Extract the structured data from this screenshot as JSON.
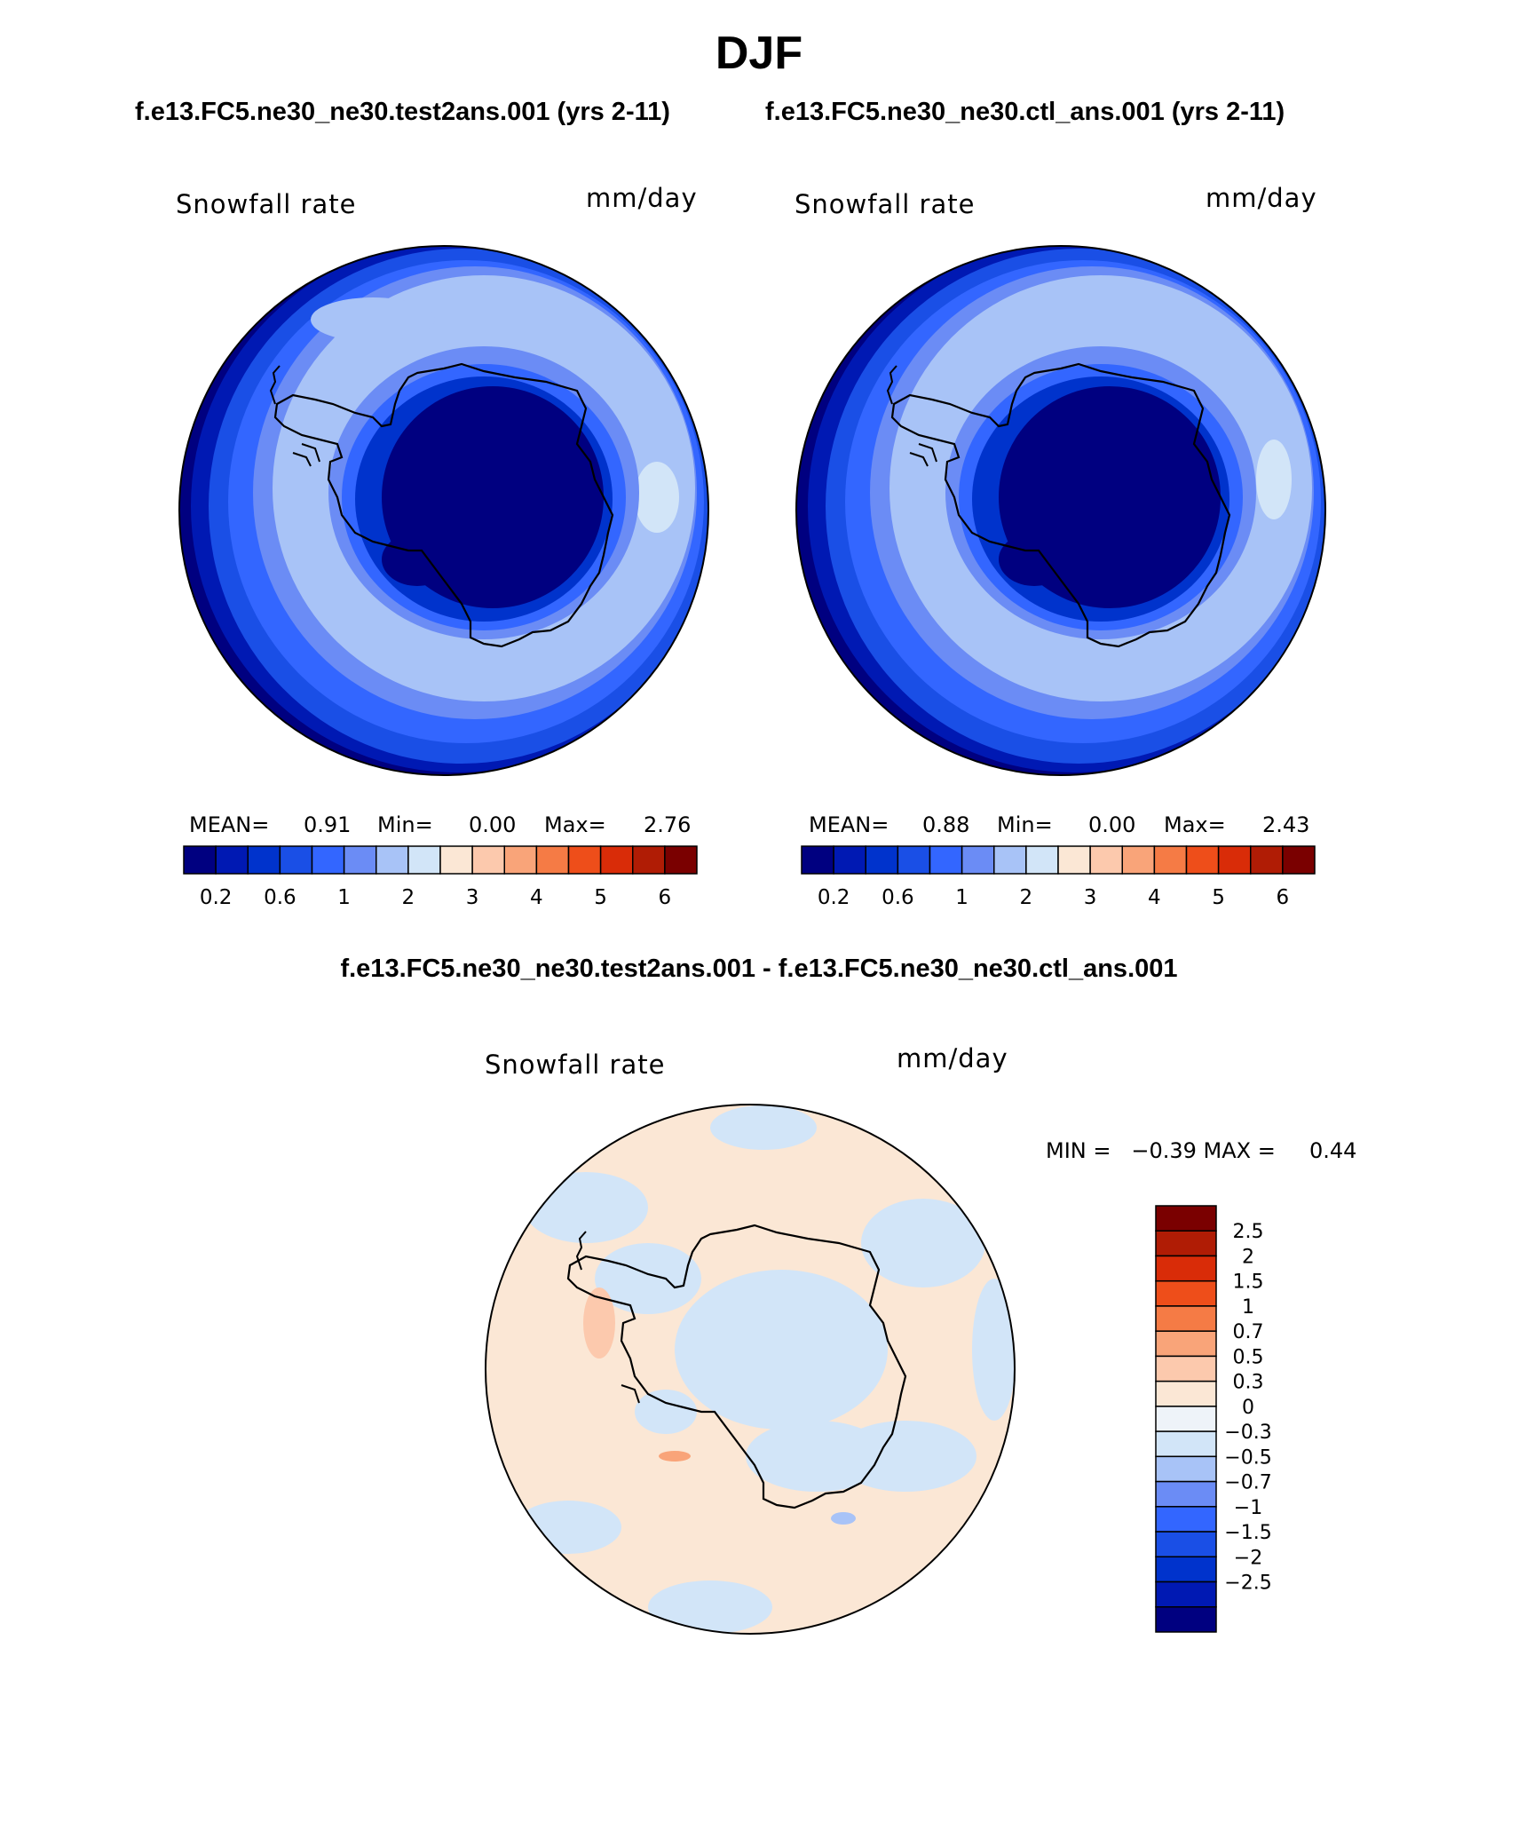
{
  "title": "DJF",
  "case_left": "f.e13.FC5.ne30_ne30.test2ans.001 (yrs 2-11)",
  "case_right": "f.e13.FC5.ne30_ne30.ctl_ans.001 (yrs 2-11)",
  "diff_title": "f.e13.FC5.ne30_ne30.test2ans.001 - f.e13.FC5.ne30_ne30.ctl_ans.001",
  "panels": {
    "left": {
      "variable": "Snowfall rate",
      "units": "mm/day",
      "mean_label": "MEAN=",
      "mean": "0.91",
      "min_label": "Min=",
      "min": "0.00",
      "max_label": "Max=",
      "max": "2.76"
    },
    "right": {
      "variable": "Snowfall rate",
      "units": "mm/day",
      "mean_label": "MEAN=",
      "mean": "0.88",
      "min_label": "Min=",
      "min": "0.00",
      "max_label": "Max=",
      "max": "2.43"
    },
    "diff": {
      "variable": "Snowfall rate",
      "units": "mm/day",
      "min_max_text": "MIN =   −0.39 MAX =     0.44"
    }
  },
  "colorbar_abs": {
    "colors": [
      "#000080",
      "#0019b3",
      "#0033cc",
      "#1a4fe6",
      "#3366ff",
      "#6b8cf5",
      "#a8c3f7",
      "#d2e5f8",
      "#fbe7d5",
      "#fcc9ad",
      "#f9a479",
      "#f57b45",
      "#ee4e1a",
      "#d92c08",
      "#b01c05",
      "#7a0000"
    ],
    "labels": [
      "0.2",
      "0.6",
      "1",
      "2",
      "3",
      "4",
      "5",
      "6"
    ]
  },
  "colorbar_diff": {
    "colors": [
      "#7a0000",
      "#b01c05",
      "#d92c08",
      "#ee4e1a",
      "#f57b45",
      "#f9a479",
      "#fcc9ad",
      "#fbe7d5",
      "#eef3f9",
      "#d2e5f8",
      "#a8c3f7",
      "#6b8cf5",
      "#3366ff",
      "#1a4fe6",
      "#0033cc",
      "#0019b3",
      "#000080"
    ],
    "labels": [
      "2.5",
      "2",
      "1.5",
      "1",
      "0.7",
      "0.5",
      "0.3",
      "0",
      "−0.3",
      "−0.5",
      "−0.7",
      "−1",
      "−1.5",
      "−2",
      "−2.5"
    ]
  }
}
